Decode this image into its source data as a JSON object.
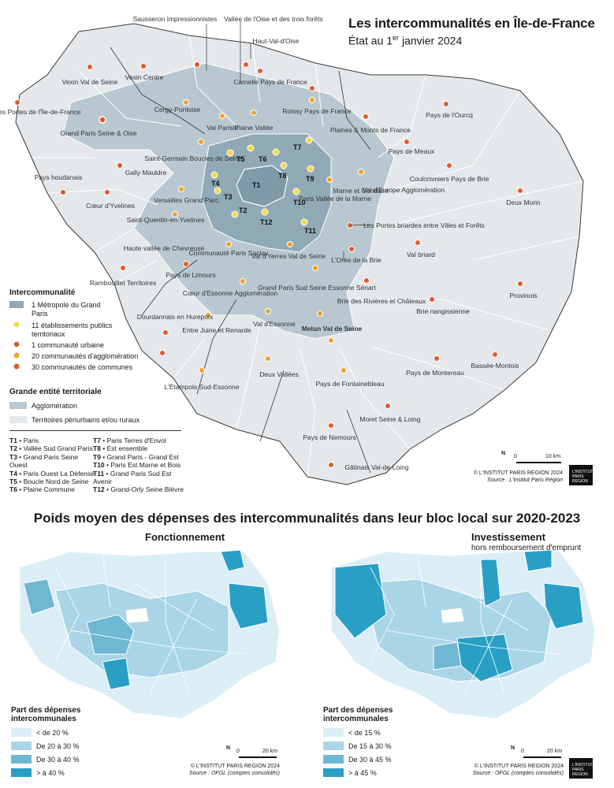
{
  "header": {
    "title": "Les intercommunalités en Île-de-France",
    "subtitle_prefix": "État au 1",
    "subtitle_sup": "er",
    "subtitle_suffix": " janvier 2024"
  },
  "map_labels": [
    "Sausseron Impressionnistes",
    "Vallée de l'Oise et des trois forêts",
    "Haut-Val-d'Oise",
    "Vexin Centre",
    "Vexin Val de Seine",
    "Carnelle Pays de France",
    "Les Portes de l'Île-de-France",
    "Cergy-Pontoise",
    "Roissy Pays de France",
    "Pays de l'Ourcq",
    "Val Parisis",
    "Plaine Vallée",
    "Plaines & Monts de France",
    "Grand Paris Seine & Oise",
    "Pays de Meaux",
    "Saint-Germain Boucles de Seine",
    "Gally Mauldre",
    "Coulommiers Pays de Brie",
    "Pays houdanais",
    "Marne et Gondoire",
    "Val d'Europe Agglomération",
    "Paris Vallée de la Marne",
    "Cœur d'Yvelines",
    "Versailles Grand Parc",
    "Deux Morin",
    "Saint-Quentin-en-Yvelines",
    "Les Portes briardes entre Villes et Forêts",
    "Haute vallée de Chevreuse",
    "Communauté Paris Saclay",
    "Val d'Yerres Val de Seine",
    "Val briard",
    "L'Orée de la Brie",
    "Pays de Limours",
    "Rambouillet Territoires",
    "Grand Paris Sud Seine Essonne Sénart",
    "Cœur d'Essonne Agglomération",
    "Brie des Rivières et Châteaux",
    "Provinois",
    "Dourdannais en Hurepoix",
    "Brie nangissienne",
    "Entre Juine et Renarde",
    "Val d'Essonne",
    "Melun Val de Seine",
    "Pays de Montereau",
    "Bassée-Montois",
    "Deux Vallées",
    "Pays de Fontainebleau",
    "L'Étampois Sud-Essonne",
    "Moret Seine & Loing",
    "Pays de Nemours",
    "Gâtinais Val-de-Loing"
  ],
  "territory_codes": [
    "T1",
    "T2",
    "T3",
    "T4",
    "T5",
    "T6",
    "T7",
    "T8",
    "T9",
    "T10",
    "T11",
    "T12"
  ],
  "legend": {
    "title": "Intercommunalité",
    "items": [
      "1 Métropole du Grand Paris",
      "11 établissements publics territoriaux",
      "1 communauté urbaine",
      "20 communautés d'agglomération",
      "30 communautés de communes"
    ],
    "title2": "Grande entité territoriale",
    "items2": [
      "Agglomération",
      "Territoires périurbains et/ou ruraux"
    ]
  },
  "codes_list": {
    "left": [
      {
        "code": "T1",
        "name": "Paris"
      },
      {
        "code": "T2",
        "name": "Vallée Sud Grand Paris"
      },
      {
        "code": "T3",
        "name": "Grand Paris Seine Ouest"
      },
      {
        "code": "T4",
        "name": "Paris Ouest La Défense"
      },
      {
        "code": "T5",
        "name": "Boucle Nord de Seine"
      },
      {
        "code": "T6",
        "name": "Plaine Commune"
      }
    ],
    "right": [
      {
        "code": "T7",
        "name": "Paris Terres d'Envol"
      },
      {
        "code": "T8",
        "name": "Est ensemble"
      },
      {
        "code": "T9",
        "name": "Grand Paris - Grand Est"
      },
      {
        "code": "T10",
        "name": "Paris Est Marne et Bois"
      },
      {
        "code": "T11",
        "name": "Grand Paris Sud Est Avenir"
      },
      {
        "code": "T12",
        "name": "Grand-Orly Seine Bièvre"
      }
    ],
    "separator": " • "
  },
  "scale": {
    "zero": "0",
    "label": "10 km",
    "north": "N"
  },
  "credit": {
    "line1": "© L'INSTITUT PARIS REGION 2024",
    "line2": "Source : L'Institut Paris Région"
  },
  "logo": {
    "line1": "L'INSTITUT",
    "line2": "PARIS",
    "line3": "REGION"
  },
  "bottom": {
    "title": "Poids moyen des dépenses des intercommunalités dans leur bloc local sur 2020-2023",
    "left": {
      "title": "Fonctionnement",
      "legend_title": "Part des dépenses intercommunales",
      "classes": [
        "< de 20 %",
        "De 20 à 30 %",
        "De 30 à 40 %",
        "> à 40 %"
      ],
      "scale_zero": "0",
      "scale_label": "20 km",
      "credit1": "© L'INSTITUT PARIS REGION 2024",
      "credit2": "Source : OFGL (comptes consolidés)"
    },
    "right": {
      "title": "Investissement",
      "subtitle": "hors remboursement d'emprunt",
      "legend_title": "Part des dépenses intercommunales",
      "classes": [
        "< de 15 %",
        "De 15 à 30 %",
        "De 30 à 45 %",
        "> à 45 %"
      ],
      "scale_zero": "0",
      "scale_label": "20 km",
      "credit1": "© L'INSTITUT PARIS REGION 2024",
      "credit2": "Source : OFGL (comptes consolidés)"
    },
    "colors": [
      "#dbeef6",
      "#a9d5e7",
      "#6fb8d3",
      "#2a9fc6"
    ]
  },
  "colors": {
    "region": "#e4e8eb",
    "agglo": "#b9c8d0",
    "metropole": "#8fa9b6",
    "ept_dot": "#f5d84c",
    "cu_dot": "#d8572a",
    "ca_dot": "#f0a22e",
    "cc_dot": "#e25a2a"
  }
}
